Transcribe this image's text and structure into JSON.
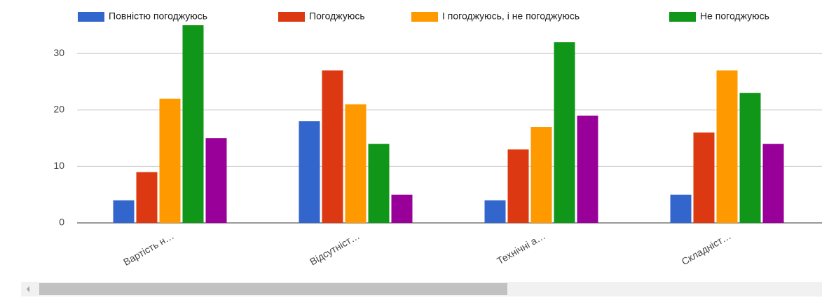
{
  "chart_data": {
    "type": "bar",
    "categories": [
      "Вартість н…",
      "Відсутніст…",
      "Технічні а…",
      "Складніст…"
    ],
    "series": [
      {
        "name": "Повністю погоджуюсь",
        "color": "#3366cc",
        "values": [
          4,
          18,
          4,
          5
        ]
      },
      {
        "name": "Погоджуюсь",
        "color": "#dc3912",
        "values": [
          9,
          27,
          13,
          16
        ]
      },
      {
        "name": "І погоджуюсь, і не погоджуюсь",
        "color": "#ff9900",
        "values": [
          22,
          21,
          17,
          27
        ]
      },
      {
        "name": "Не погоджуюсь",
        "color": "#109618",
        "values": [
          35,
          14,
          32,
          23
        ]
      },
      {
        "color": "#990099",
        "values": [
          15,
          5,
          19,
          14
        ]
      }
    ],
    "ylim": [
      0,
      35
    ],
    "yticks": [
      0,
      10,
      20,
      30
    ],
    "grid": true,
    "legend": "top"
  }
}
